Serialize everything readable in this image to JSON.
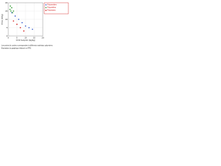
{
  "chart_data": {
    "type": "scatter",
    "x_label": "CO2 footprint (kg/kg)",
    "y_label": "Price (€/kg)",
    "caption": [
      "Les points de couleur correspondent à différents matériaux polymères.",
      "Illustration du graphique élaboré en PPS"
    ],
    "xlim": [
      0,
      20
    ],
    "ylim": [
      0,
      20
    ],
    "xticks": [
      0,
      5,
      10,
      15,
      20
    ],
    "yticks": [
      0,
      5,
      10,
      15,
      20
    ],
    "grid": true,
    "legend": "upper right",
    "series": [
      {
        "name": "Polyamides",
        "color": "#3a5fcd",
        "x": [
          2,
          4,
          6,
          8,
          10,
          12,
          14
        ],
        "values": [
          14,
          12,
          10,
          8,
          6,
          5,
          4
        ]
      },
      {
        "name": "Polyolefins",
        "color": "#3aa03a",
        "x": [
          1,
          1.5,
          2,
          2.5,
          3,
          1.2
        ],
        "values": [
          16,
          15,
          17,
          14,
          15,
          18
        ]
      },
      {
        "name": "Polyesters",
        "color": "#d22222",
        "x": [
          3,
          5,
          7,
          9
        ],
        "values": [
          9,
          7,
          5,
          3
        ]
      }
    ]
  }
}
